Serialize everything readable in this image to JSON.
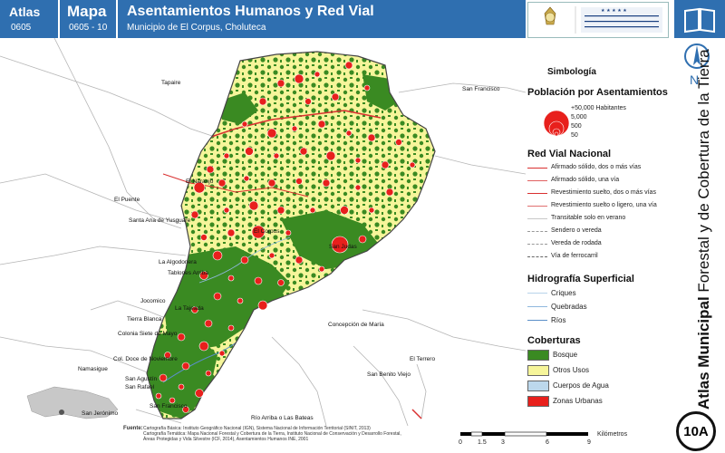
{
  "header": {
    "atlas_label": "Atlas",
    "atlas_code": "0605",
    "mapa_label": "Mapa",
    "mapa_code": "0605 - 10",
    "title": "Asentamientos Humanos y Red Vial",
    "subtitle": "Municipio de El Corpus, Choluteca",
    "logo_left_text": "GOBIERNO DE LA REPÚBLICA DE HONDURAS",
    "logo_right_text": "INSTITUTO NACIONAL DE CONSERVACIÓN Y DESARROLLO FORESTAL, ÁREAS PROTEGIDAS Y VIDA SILVESTRE"
  },
  "side": {
    "north": "N",
    "vertical_title_bold": "Atlas Municipal",
    "vertical_title_rest": " Forestal y de Cobertura de la Tierra",
    "badge": "10A"
  },
  "map_labels": [
    {
      "text": "Tapaire"
    },
    {
      "text": "San Francisco"
    },
    {
      "text": "El Naranjo"
    },
    {
      "text": "El Puente"
    },
    {
      "text": "Santa Ana de Yusguare"
    },
    {
      "text": "El Corpus"
    },
    {
      "text": "San Judas"
    },
    {
      "text": "La Algodonera"
    },
    {
      "text": "Tablones Arriba"
    },
    {
      "text": "Jocomico"
    },
    {
      "text": "La Tajeada"
    },
    {
      "text": "Tierra Blanca"
    },
    {
      "text": "Colonia Siete de Mayo"
    },
    {
      "text": "Concepción de María"
    },
    {
      "text": "Col. Doce de Noviembre"
    },
    {
      "text": "Namasigue"
    },
    {
      "text": "El Terrero"
    },
    {
      "text": "San Agustín"
    },
    {
      "text": "San Benito Viejo"
    },
    {
      "text": "San Rafael"
    },
    {
      "text": "San Francisco"
    },
    {
      "text": "Río Arriba o Las Bateas"
    },
    {
      "text": "San Jerónimo"
    }
  ],
  "legend": {
    "title": "Simbología",
    "pop_title": "Población por Asentamientos",
    "pop_items": [
      "+50,000 Habitantes",
      "5,000",
      "500",
      "50"
    ],
    "road_title": "Red Vial Nacional",
    "road_items": [
      {
        "label": "Afirmado sólido, dos o más vías",
        "color": "#d93030"
      },
      {
        "label": "Afirmado sólido, una vía",
        "color": "#e06060"
      },
      {
        "label": "Revestimiento suelto, dos o más vías",
        "color": "#d93030"
      },
      {
        "label": "Revestimiento suelto o ligero, una vía",
        "color": "#e07070"
      },
      {
        "label": "Transitable solo en verano",
        "color": "#c8c8c8"
      },
      {
        "label": "Sendero o vereda",
        "color": "#999999"
      },
      {
        "label": "Vereda de rodada",
        "color": "#999999"
      },
      {
        "label": "Vía de ferrocarril",
        "color": "#666666"
      }
    ],
    "hydro_title": "Hidrografía Superficial",
    "hydro_items": [
      {
        "label": "Criques",
        "color": "#b8d4ea"
      },
      {
        "label": "Quebradas",
        "color": "#8fb8de"
      },
      {
        "label": "Ríos",
        "color": "#5a8fc8"
      }
    ],
    "cover_title": "Coberturas",
    "cover_items": [
      {
        "label": "Bosque",
        "color": "#3a8a22"
      },
      {
        "label": "Otros Usos",
        "color": "#f6f59a"
      },
      {
        "label": "Cuerpos de Agua",
        "color": "#bcd8ec"
      },
      {
        "label": "Zonas Urbanas",
        "color": "#e8201c"
      }
    ]
  },
  "footer": {
    "fuente_label": "Fuente:",
    "lines": [
      "Cartografía Básica: Instituto Geográfico Nacional (IGN), Sistema Nacional de Información Territorial (SINIT, 2013)",
      "Cartografía Temática: Mapa Nacional Forestal y Cobertura de la Tierra, Instituto Nacional de Conservación y Desarrollo Forestal,",
      "Áreas Protegidas y Vida Silvestre (ICF, 2014), Asentamientos Humanos INE, 2001"
    ]
  },
  "scale": {
    "ticks": [
      "0",
      "1.5",
      "3",
      "6",
      "9"
    ],
    "unit": "Kilómetros"
  },
  "colors": {
    "header_blue": "#2f6fb0",
    "forest": "#3a8a22",
    "other_uses": "#f6f59a",
    "urban": "#e8201c"
  }
}
